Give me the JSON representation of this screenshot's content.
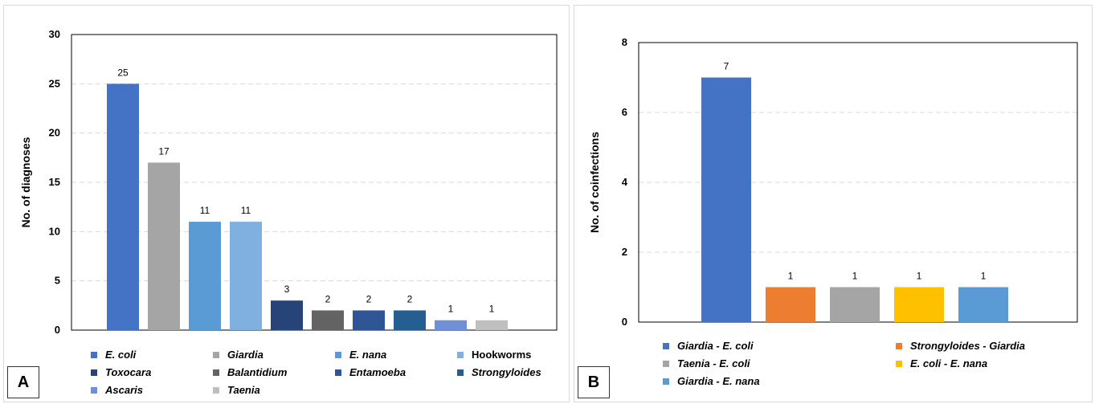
{
  "chart_data": [
    {
      "type": "bar",
      "panel_label": "A",
      "ylabel": "No. of diagnoses",
      "ylim": [
        0,
        30
      ],
      "yticks": [
        "0",
        "5",
        "10",
        "15",
        "20",
        "25",
        "30"
      ],
      "grid": "dashed horizontal",
      "legend_position": "bottom",
      "categories": [
        "E. coli",
        "Giardia",
        "E. nana",
        "Hookworms",
        "Toxocara",
        "Balantidium",
        "Entamoeba",
        "Strongyloides",
        "Ascaris",
        "Taenia"
      ],
      "values": [
        25,
        17,
        11,
        11,
        3,
        2,
        2,
        2,
        1,
        1
      ],
      "value_labels": [
        "25",
        "17",
        "11",
        "11",
        "3",
        "2",
        "2",
        "2",
        "1",
        "1"
      ],
      "italic": [
        true,
        true,
        true,
        false,
        true,
        true,
        true,
        true,
        true,
        true
      ],
      "colors": [
        "#4472c4",
        "#a5a5a5",
        "#5b9bd5",
        "#7fb0e0",
        "#264478",
        "#636363",
        "#2f5597",
        "#255e91",
        "#6f8fd8",
        "#bfbfbf"
      ]
    },
    {
      "type": "bar",
      "panel_label": "B",
      "ylabel": "No. of coinfections",
      "ylim": [
        0,
        8
      ],
      "yticks": [
        "0",
        "2",
        "4",
        "6",
        "8"
      ],
      "grid": "dashed horizontal",
      "legend_position": "bottom",
      "categories": [
        "Giardia - E. coli",
        "Strongyloides - Giardia",
        "Taenia - E. coli",
        "E. coli - E. nana",
        "Giardia - E. nana"
      ],
      "values": [
        7,
        1,
        1,
        1,
        1
      ],
      "value_labels": [
        "7",
        "1",
        "1",
        "1",
        "1"
      ],
      "italic": [
        true,
        true,
        true,
        true,
        true
      ],
      "colors": [
        "#4472c4",
        "#ed7d31",
        "#a5a5a5",
        "#ffc000",
        "#5b9bd5"
      ]
    }
  ]
}
